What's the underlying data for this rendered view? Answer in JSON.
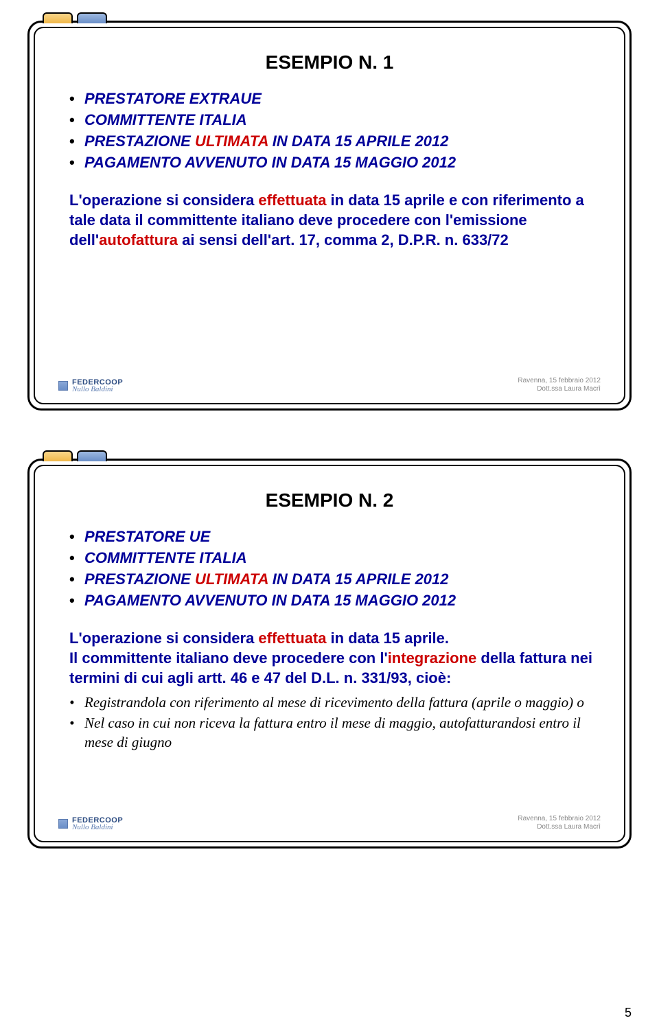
{
  "slide1": {
    "title": "ESEMPIO N. 1",
    "bullets": {
      "b0": "PRESTATORE EXTRAUE",
      "b1": "COMMITTENTE ITALIA",
      "b2_pre": "PRESTAZIONE ",
      "b2_em": "ULTIMATA",
      "b2_post": " IN DATA 15 APRILE 2012",
      "b3": "PAGAMENTO AVVENUTO IN DATA 15 MAGGIO 2012"
    },
    "body_pre": "L'operazione si considera ",
    "body_em1": "effettuata ",
    "body_mid": "in data 15 aprile e con riferimento a tale data il committente italiano deve procedere con l'emissione dell'",
    "body_em2": "autofattura ",
    "body_post": "ai sensi dell'art. 17, comma 2, D.P.R. n. 633/72"
  },
  "slide2": {
    "title": "ESEMPIO N. 2",
    "bullets": {
      "b0": "PRESTATORE UE",
      "b1": "COMMITTENTE ITALIA",
      "b2_pre": "PRESTAZIONE ",
      "b2_em": "ULTIMATA",
      "b2_post": " IN DATA 15 APRILE 2012",
      "b3": "PAGAMENTO AVVENUTO IN DATA 15 MAGGIO 2012"
    },
    "body_pre": "L'operazione si considera ",
    "body_em1": "effettuata ",
    "body_mid1": "in data 15 aprile.",
    "body_line2_pre": "Il committente italiano deve procedere con l'",
    "body_em2": "integrazione ",
    "body_line2_post": "della fattura nei termini di cui agli artt. 46 e 47 del D.L. n. 331/93, cioè:",
    "sub": {
      "s0": "Registrandola con riferimento al mese di ricevimento della fattura (aprile o maggio) o",
      "s1": "Nel caso in cui non riceva la fattura entro il mese di maggio, autofatturandosi entro il mese di giugno"
    }
  },
  "footer": {
    "logo": "FEDERCOOP",
    "logo_sub": "Nullo Baldini",
    "line1": "Ravenna, 15 febbraio 2012",
    "line2": "Dott.ssa Laura Macrì"
  },
  "page_number": "5"
}
